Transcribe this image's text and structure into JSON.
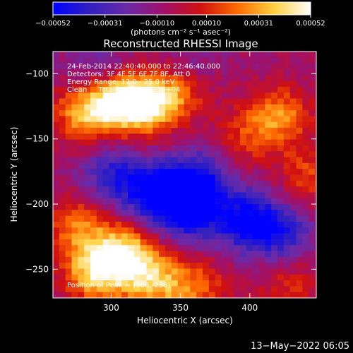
{
  "chart_data": {
    "type": "heatmap",
    "title": "Reconstructed RHESSI Image",
    "xlabel": "Heliocentric X (arcsec)",
    "ylabel": "Heliocentric Y (arcsec)",
    "xlim": [
      258,
      448
    ],
    "ylim": [
      -272,
      -83
    ],
    "xticks": [
      300,
      350,
      400
    ],
    "xtick_labels": [
      "300",
      "350",
      "400"
    ],
    "yticks": [
      -100,
      -150,
      -200,
      -250
    ],
    "ytick_labels": [
      "−100",
      "−150",
      "−200",
      "−250"
    ],
    "colorbar": {
      "ticks": [
        -0.00052,
        -0.00031,
        -0.0001,
        0.0001,
        0.00031,
        0.00052
      ],
      "tick_labels": [
        "−0.00052",
        "−0.00031",
        "−0.00010",
        "0.00010",
        "0.00031",
        "0.00052"
      ],
      "unit_label": "(photons cm⁻² s⁻¹ asec⁻²)",
      "colors": [
        "#0000ff",
        "#3020c0",
        "#6a2aa8",
        "#a0106a",
        "#d01010",
        "#ff6a00",
        "#ffd040",
        "#ffffff"
      ]
    },
    "annotations": [
      "24-Feb-2014 22:40:40.000 to 22:46:40.000",
      "Detectors: 3F 4F 5F 6F 7F 8F, Att 0",
      "Energy Range: 12.0 - 25.0 keV",
      "Clean     Total counts: 1.25E+04"
    ],
    "peak_label": "Position of Peak = [308,-238]",
    "regions": [
      {
        "x": 300,
        "y": -118,
        "value": 0.00045
      },
      {
        "x": 322,
        "y": -121,
        "value": 0.0005
      },
      {
        "x": 278,
        "y": -128,
        "value": 0.00035
      },
      {
        "x": 345,
        "y": -112,
        "value": 0.00028
      },
      {
        "x": 420,
        "y": -130,
        "value": 0.00032
      },
      {
        "x": 395,
        "y": -145,
        "value": 0.0002
      },
      {
        "x": 440,
        "y": -175,
        "value": 0.00022
      },
      {
        "x": 308,
        "y": -238,
        "value": 0.00052
      },
      {
        "x": 285,
        "y": -250,
        "value": 0.00042
      },
      {
        "x": 330,
        "y": -258,
        "value": 0.00036
      },
      {
        "x": 275,
        "y": -215,
        "value": 0.0003
      },
      {
        "x": 360,
        "y": -262,
        "value": 0.00025
      },
      {
        "x": 425,
        "y": -262,
        "value": 0.00018
      },
      {
        "x": 330,
        "y": -190,
        "value": -0.00045
      },
      {
        "x": 360,
        "y": -180,
        "value": -0.0004
      },
      {
        "x": 395,
        "y": -210,
        "value": -0.00042
      },
      {
        "x": 300,
        "y": -175,
        "value": -0.0003
      },
      {
        "x": 420,
        "y": -220,
        "value": -0.0003
      },
      {
        "x": 355,
        "y": -205,
        "value": -0.00038
      },
      {
        "x": 290,
        "y": -95,
        "value": -0.0002
      },
      {
        "x": 350,
        "y": -92,
        "value": -0.00012
      }
    ]
  },
  "timestamp": "13−May−2022 06:05"
}
